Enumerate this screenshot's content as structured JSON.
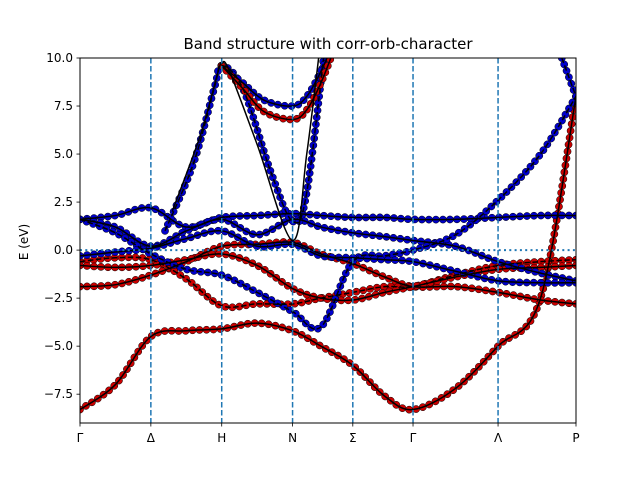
{
  "chart_data": {
    "type": "line",
    "title": "Band structure with corr-orb-character",
    "xlabel": "",
    "ylabel": "E (eV)",
    "xlim": [
      0,
      7
    ],
    "ylim": [
      -9,
      10
    ],
    "yticks": [
      -7.5,
      -5.0,
      -2.5,
      0.0,
      2.5,
      5.0,
      7.5,
      10.0
    ],
    "ytick_labels": [
      "−7.5",
      "−5.0",
      "−2.5",
      "0.0",
      "2.5",
      "5.0",
      "7.5",
      "10.0"
    ],
    "kpoints": [
      {
        "x": 0,
        "label": "Γ"
      },
      {
        "x": 1,
        "label": "Δ"
      },
      {
        "x": 2,
        "label": "H"
      },
      {
        "x": 3,
        "label": "N"
      },
      {
        "x": 3.85,
        "label": "Σ"
      },
      {
        "x": 4.7,
        "label": "Γ"
      },
      {
        "x": 5.9,
        "label": "Λ"
      },
      {
        "x": 7,
        "label": "P"
      }
    ],
    "fermi_level": 0.0,
    "grid": false,
    "colors": {
      "band": "#000000",
      "marker_red": "#cc0000",
      "marker_blue": "#0000cc",
      "vline": "#1f77b4",
      "fermi": "#1f77b4"
    },
    "series": [
      {
        "style": "solid",
        "x": [
          0,
          0.5,
          1,
          1.5,
          2,
          2.5,
          3,
          3.4,
          3.85,
          4.3,
          4.7,
          5.3,
          5.9,
          6.5,
          7
        ],
        "y": [
          -8.3,
          -7.0,
          -4.5,
          -4.2,
          -4.1,
          -3.8,
          -4.2,
          -5.0,
          -6.0,
          -7.6,
          -8.3,
          -7.2,
          -5.0,
          -2.5,
          8.0
        ],
        "markers": "red"
      },
      {
        "style": "solid",
        "x": [
          0,
          0.5,
          1,
          1.5,
          2,
          2.5,
          3,
          3.4,
          3.85,
          4.3,
          4.7,
          5.3,
          5.9,
          6.5,
          7
        ],
        "y": [
          -1.9,
          -1.8,
          -1.3,
          -0.6,
          0.2,
          0.3,
          0.4,
          -0.2,
          -0.7,
          -1.4,
          -1.9,
          -1.9,
          -2.2,
          -2.6,
          -2.8
        ],
        "markers": "red"
      },
      {
        "style": "dashed",
        "x": [
          0,
          0.5,
          1,
          1.5,
          2,
          2.5,
          3,
          3.4,
          3.85,
          4.3,
          4.7,
          5.3,
          5.9,
          6.5,
          7
        ],
        "y": [
          -0.6,
          -0.4,
          -0.5,
          -1.5,
          -2.9,
          -2.8,
          -2.8,
          -2.5,
          -2.2,
          -1.9,
          -1.9,
          -1.3,
          -0.8,
          -0.6,
          -0.5
        ],
        "markers": "red"
      },
      {
        "style": "solid",
        "x": [
          0,
          0.5,
          1,
          1.5,
          2,
          2.5,
          3,
          3.4,
          3.85,
          4.3,
          4.7,
          5.3,
          5.9,
          6.5,
          7
        ],
        "y": [
          -0.8,
          -0.9,
          -0.8,
          -0.5,
          -0.2,
          -0.8,
          -2.0,
          -2.5,
          -2.6,
          -2.2,
          -1.9,
          -1.4,
          -1.0,
          -0.9,
          -0.8
        ],
        "markers": "red"
      },
      {
        "style": "solid",
        "x": [
          0,
          0.5,
          1,
          1.5,
          2,
          2.5,
          3,
          3.4,
          3.85,
          4.3,
          4.7,
          5.3,
          5.9,
          6.5,
          7
        ],
        "y": [
          1.6,
          1.8,
          2.2,
          1.2,
          1.7,
          1.8,
          1.9,
          1.8,
          1.7,
          1.7,
          1.6,
          1.6,
          1.7,
          1.8,
          1.8
        ],
        "markers": "blue"
      },
      {
        "style": "solid",
        "x": [
          0,
          0.5,
          1,
          1.5,
          2,
          2.5,
          3,
          3.4,
          3.85,
          4.3,
          4.7,
          5.3,
          5.9,
          6.5,
          7
        ],
        "y": [
          1.6,
          1.2,
          0.2,
          1.0,
          1.6,
          0.8,
          1.6,
          1.2,
          0.9,
          0.7,
          0.5,
          0.2,
          -0.6,
          -1.2,
          -1.6
        ],
        "markers": "blue"
      },
      {
        "style": "dashed",
        "x": [
          0,
          0.5,
          1,
          1.5,
          2,
          2.5,
          3,
          3.4,
          3.85,
          4.3,
          4.7,
          5.3,
          5.9,
          6.5,
          7
        ],
        "y": [
          1.6,
          0.9,
          -0.2,
          -1.0,
          -1.3,
          -2.2,
          -3.2,
          -4.0,
          -0.6,
          -0.3,
          0.0,
          0.8,
          2.6,
          5.0,
          8.0
        ],
        "markers": "blue"
      },
      {
        "style": "solid",
        "x": [
          0,
          0.5,
          1,
          1.5,
          2,
          2.5,
          3,
          3.4,
          3.85,
          4.3,
          4.7,
          5.3,
          5.9,
          6.5,
          7
        ],
        "y": [
          -0.3,
          -0.1,
          0.1,
          0.6,
          1.0,
          0.2,
          0.3,
          -0.3,
          -0.4,
          -0.5,
          -0.6,
          -1.1,
          -1.6,
          -1.7,
          -1.7
        ],
        "markers": "blue"
      },
      {
        "style": "dashed",
        "x": [
          1.2,
          1.6,
          1.9,
          2.0,
          2.3,
          2.7,
          3.0,
          3.2,
          3.5
        ],
        "y": [
          1.0,
          4.5,
          8.5,
          9.6,
          8.4,
          4.0,
          1.5,
          3.0,
          12.0
        ],
        "markers": "blue"
      },
      {
        "style": "solid",
        "x": [
          1.3,
          1.7,
          1.95,
          2.0,
          2.1,
          2.5,
          3.0,
          3.2,
          3.4
        ],
        "y": [
          2.0,
          6.0,
          9.3,
          9.7,
          9.4,
          5.5,
          0.5,
          5.0,
          11.0
        ],
        "markers": "none"
      },
      {
        "style": "solid",
        "x": [
          2.0,
          2.3,
          2.6,
          3.0,
          3.2,
          3.4,
          3.6
        ],
        "y": [
          9.6,
          8.7,
          7.8,
          7.5,
          8.0,
          9.3,
          11.0
        ],
        "markers": "blue"
      },
      {
        "style": "solid",
        "x": [
          2.0,
          2.3,
          2.6,
          3.0,
          3.2,
          3.4,
          3.6
        ],
        "y": [
          9.6,
          8.4,
          7.2,
          6.8,
          7.3,
          8.7,
          10.6
        ],
        "markers": "red"
      },
      {
        "style": "dashed",
        "x": [
          6.8,
          6.9,
          7.0
        ],
        "y": [
          10.0,
          9.0,
          8.0
        ],
        "markers": "blue"
      }
    ]
  }
}
